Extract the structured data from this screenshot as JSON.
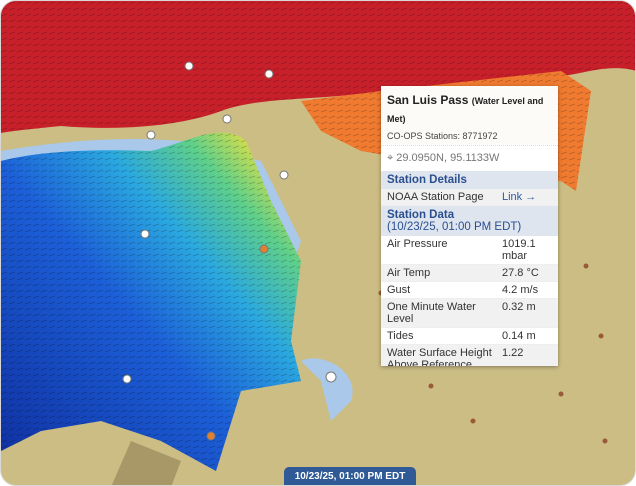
{
  "popup": {
    "title": "San Luis Pass",
    "title_suffix": "(Water Level and Met)",
    "station_id_line": "CO-OPS Stations: 8771972",
    "coordinates": "29.0950N, 95.1133W",
    "location_icon": "crosshair-icon",
    "details_header": "Station Details",
    "noaa_label": "NOAA Station Page",
    "noaa_link": "Link →",
    "data_header": "Station Data",
    "data_time": "(10/23/25, 01:00 PM EDT)",
    "rows": [
      {
        "label": "Air Pressure",
        "value": "1019.1 mbar"
      },
      {
        "label": "Air Temp",
        "value": "27.8 °C"
      },
      {
        "label": "Gust",
        "value": "4.2 m/s"
      },
      {
        "label": "One Minute Water Level",
        "value": "0.32 m"
      },
      {
        "label": "Tides",
        "value": "0.14 m"
      },
      {
        "label": "Water Surface Height Above Reference",
        "value": "1.22"
      }
    ]
  },
  "time_display": "10/23/25, 01:00 PM EDT",
  "colors": {
    "land": "#cbbd84",
    "gulf_high": "#c8202a",
    "bay_low": "#1234a8",
    "accent": "#2f5a96"
  }
}
